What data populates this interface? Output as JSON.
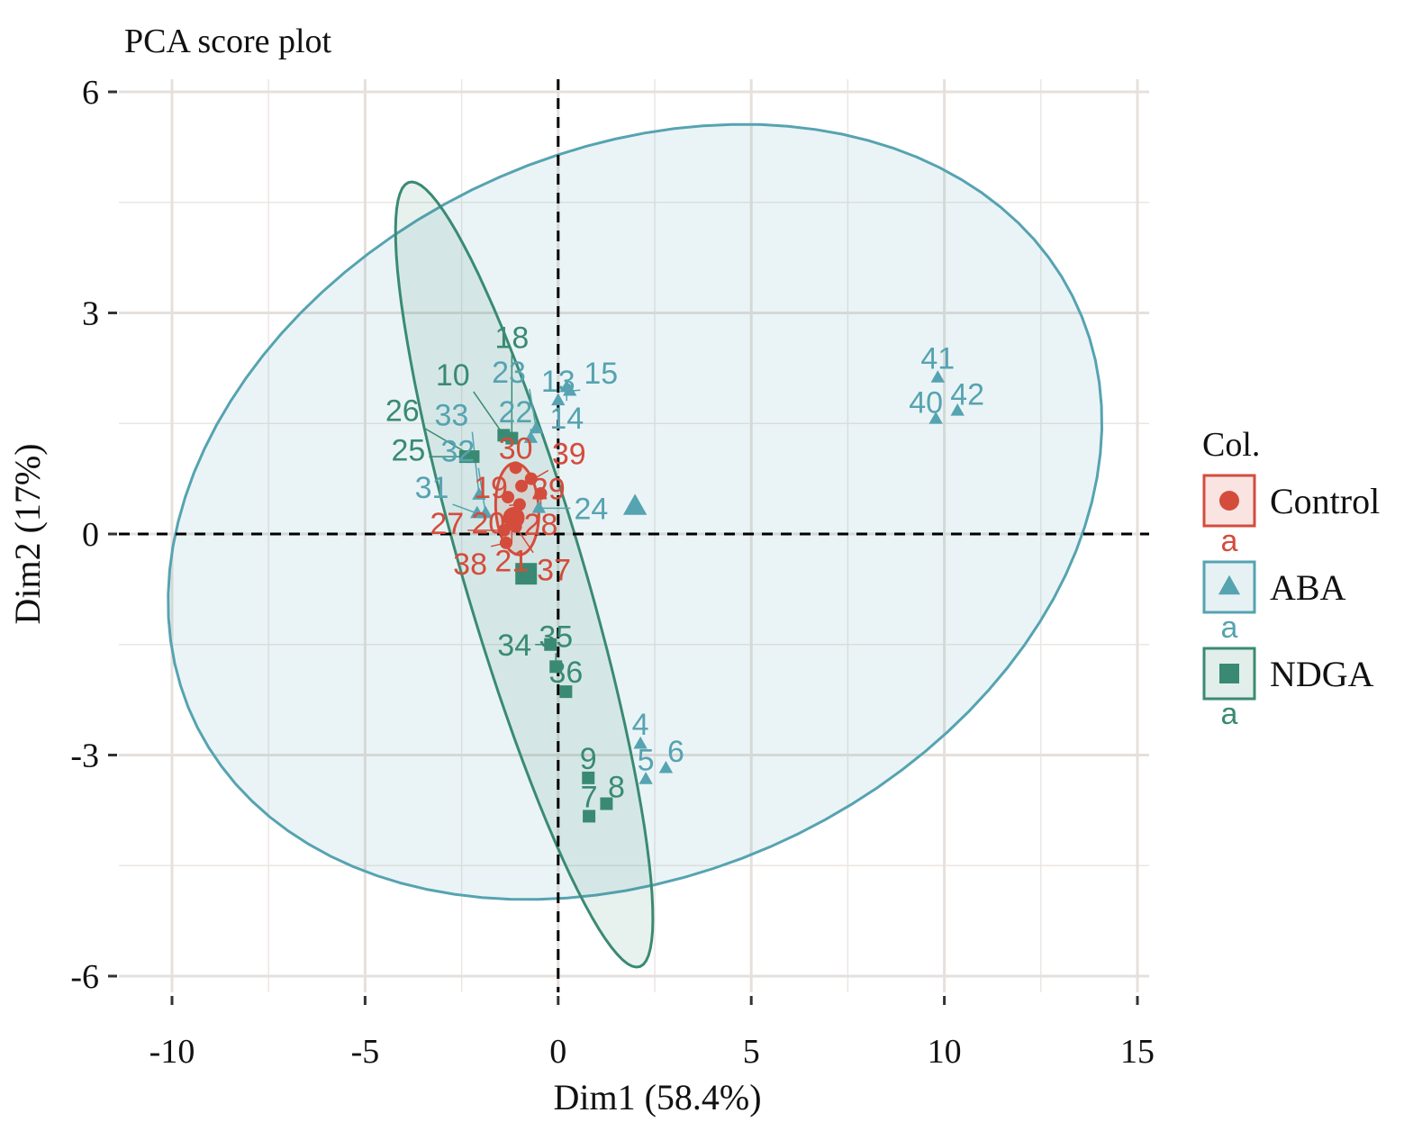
{
  "chart_data": {
    "type": "scatter",
    "title": "PCA score plot",
    "xlabel": "Dim1 (58.4%)",
    "ylabel": "Dim2 (17%)",
    "xlim": [
      -11,
      15.3
    ],
    "ylim": [
      -6.3,
      6.2
    ],
    "xticks": [
      -10,
      -5,
      0,
      5,
      10,
      15
    ],
    "xtick_labels": [
      "-10",
      "-5",
      "0",
      "5",
      "10",
      "15"
    ],
    "yticks": [
      -6,
      -3,
      0,
      3,
      6
    ],
    "ytick_labels": [
      "-6",
      "-3",
      "0",
      "3",
      "6"
    ],
    "grid": true,
    "legend": {
      "title": "Col.",
      "placement": "right",
      "key_text": "a"
    },
    "series": [
      {
        "name": "Control",
        "color": "#d44c3c",
        "shape": "circle",
        "centroid": [
          -1.15,
          0.22
        ],
        "ellipse": {
          "center": [
            -1.06,
            0.34
          ],
          "axis_a": [
            0.1,
            -0.62
          ],
          "axis_b": [
            0.55,
            0.05
          ]
        },
        "points": [
          {
            "x": -1.1,
            "y": 0.9,
            "label": "30"
          },
          {
            "x": -0.7,
            "y": 0.75,
            "label": "29"
          },
          {
            "x": -0.45,
            "y": 0.55,
            "label": "28"
          },
          {
            "x": -1.3,
            "y": 0.5,
            "label": "19"
          },
          {
            "x": -1.0,
            "y": 0.4,
            "label": "20"
          },
          {
            "x": -1.2,
            "y": 0.2,
            "label": "21"
          },
          {
            "x": -1.4,
            "y": 0.05,
            "label": "27"
          },
          {
            "x": -1.1,
            "y": 0.1,
            "label": "37"
          },
          {
            "x": -1.35,
            "y": -0.12,
            "label": "38"
          },
          {
            "x": -0.95,
            "y": 0.65,
            "label": "39"
          }
        ]
      },
      {
        "name": "ABA",
        "color": "#56a3b1",
        "shape": "triangle",
        "centroid": [
          1.99,
          0.37
        ],
        "ellipse": {
          "center": [
            1.99,
            0.3
          ],
          "axis_a": [
            12.05,
            0.79
          ],
          "axis_b": [
            1.0,
            5.2
          ]
        },
        "points": [
          {
            "x": 9.83,
            "y": 2.12,
            "label": "41"
          },
          {
            "x": 10.34,
            "y": 1.67,
            "label": "42"
          },
          {
            "x": 9.78,
            "y": 1.56,
            "label": "40"
          },
          {
            "x": 2.13,
            "y": -2.85,
            "label": "4"
          },
          {
            "x": 2.27,
            "y": -3.33,
            "label": "5"
          },
          {
            "x": 2.79,
            "y": -3.18,
            "label": "6"
          },
          {
            "x": 0.0,
            "y": 1.81,
            "label": "13"
          },
          {
            "x": 0.22,
            "y": 1.99,
            "label": "14"
          },
          {
            "x": 0.3,
            "y": 1.94,
            "label": "15"
          },
          {
            "x": -0.71,
            "y": 1.3,
            "label": "22"
          },
          {
            "x": -0.57,
            "y": 1.43,
            "label": "23"
          },
          {
            "x": -0.5,
            "y": 0.35,
            "label": "24"
          },
          {
            "x": -2.1,
            "y": 0.28,
            "label": "31"
          },
          {
            "x": -1.88,
            "y": 0.28,
            "label": "32"
          },
          {
            "x": -2.05,
            "y": 0.53,
            "label": "33"
          }
        ]
      },
      {
        "name": "NDGA",
        "color": "#3a8a73",
        "shape": "square",
        "centroid": [
          -0.83,
          -0.54
        ],
        "ellipse": {
          "center": [
            -0.88,
            -0.55
          ],
          "axis_a": [
            3.0,
            -5.32
          ],
          "axis_b": [
            1.45,
            0.3
          ]
        },
        "points": [
          {
            "x": 0.8,
            "y": -3.83,
            "label": "7"
          },
          {
            "x": 1.25,
            "y": -3.66,
            "label": "8"
          },
          {
            "x": 0.78,
            "y": -3.31,
            "label": "9"
          },
          {
            "x": 0.2,
            "y": -2.14,
            "label": "36"
          },
          {
            "x": -0.06,
            "y": -1.8,
            "label": "35"
          },
          {
            "x": -0.2,
            "y": -1.5,
            "label": "34"
          },
          {
            "x": -1.41,
            "y": 1.34,
            "label": "10"
          },
          {
            "x": -1.2,
            "y": 1.3,
            "label": "18"
          },
          {
            "x": -2.4,
            "y": 1.05,
            "label": "25"
          },
          {
            "x": -2.2,
            "y": 1.05,
            "label": "26"
          }
        ]
      }
    ]
  }
}
